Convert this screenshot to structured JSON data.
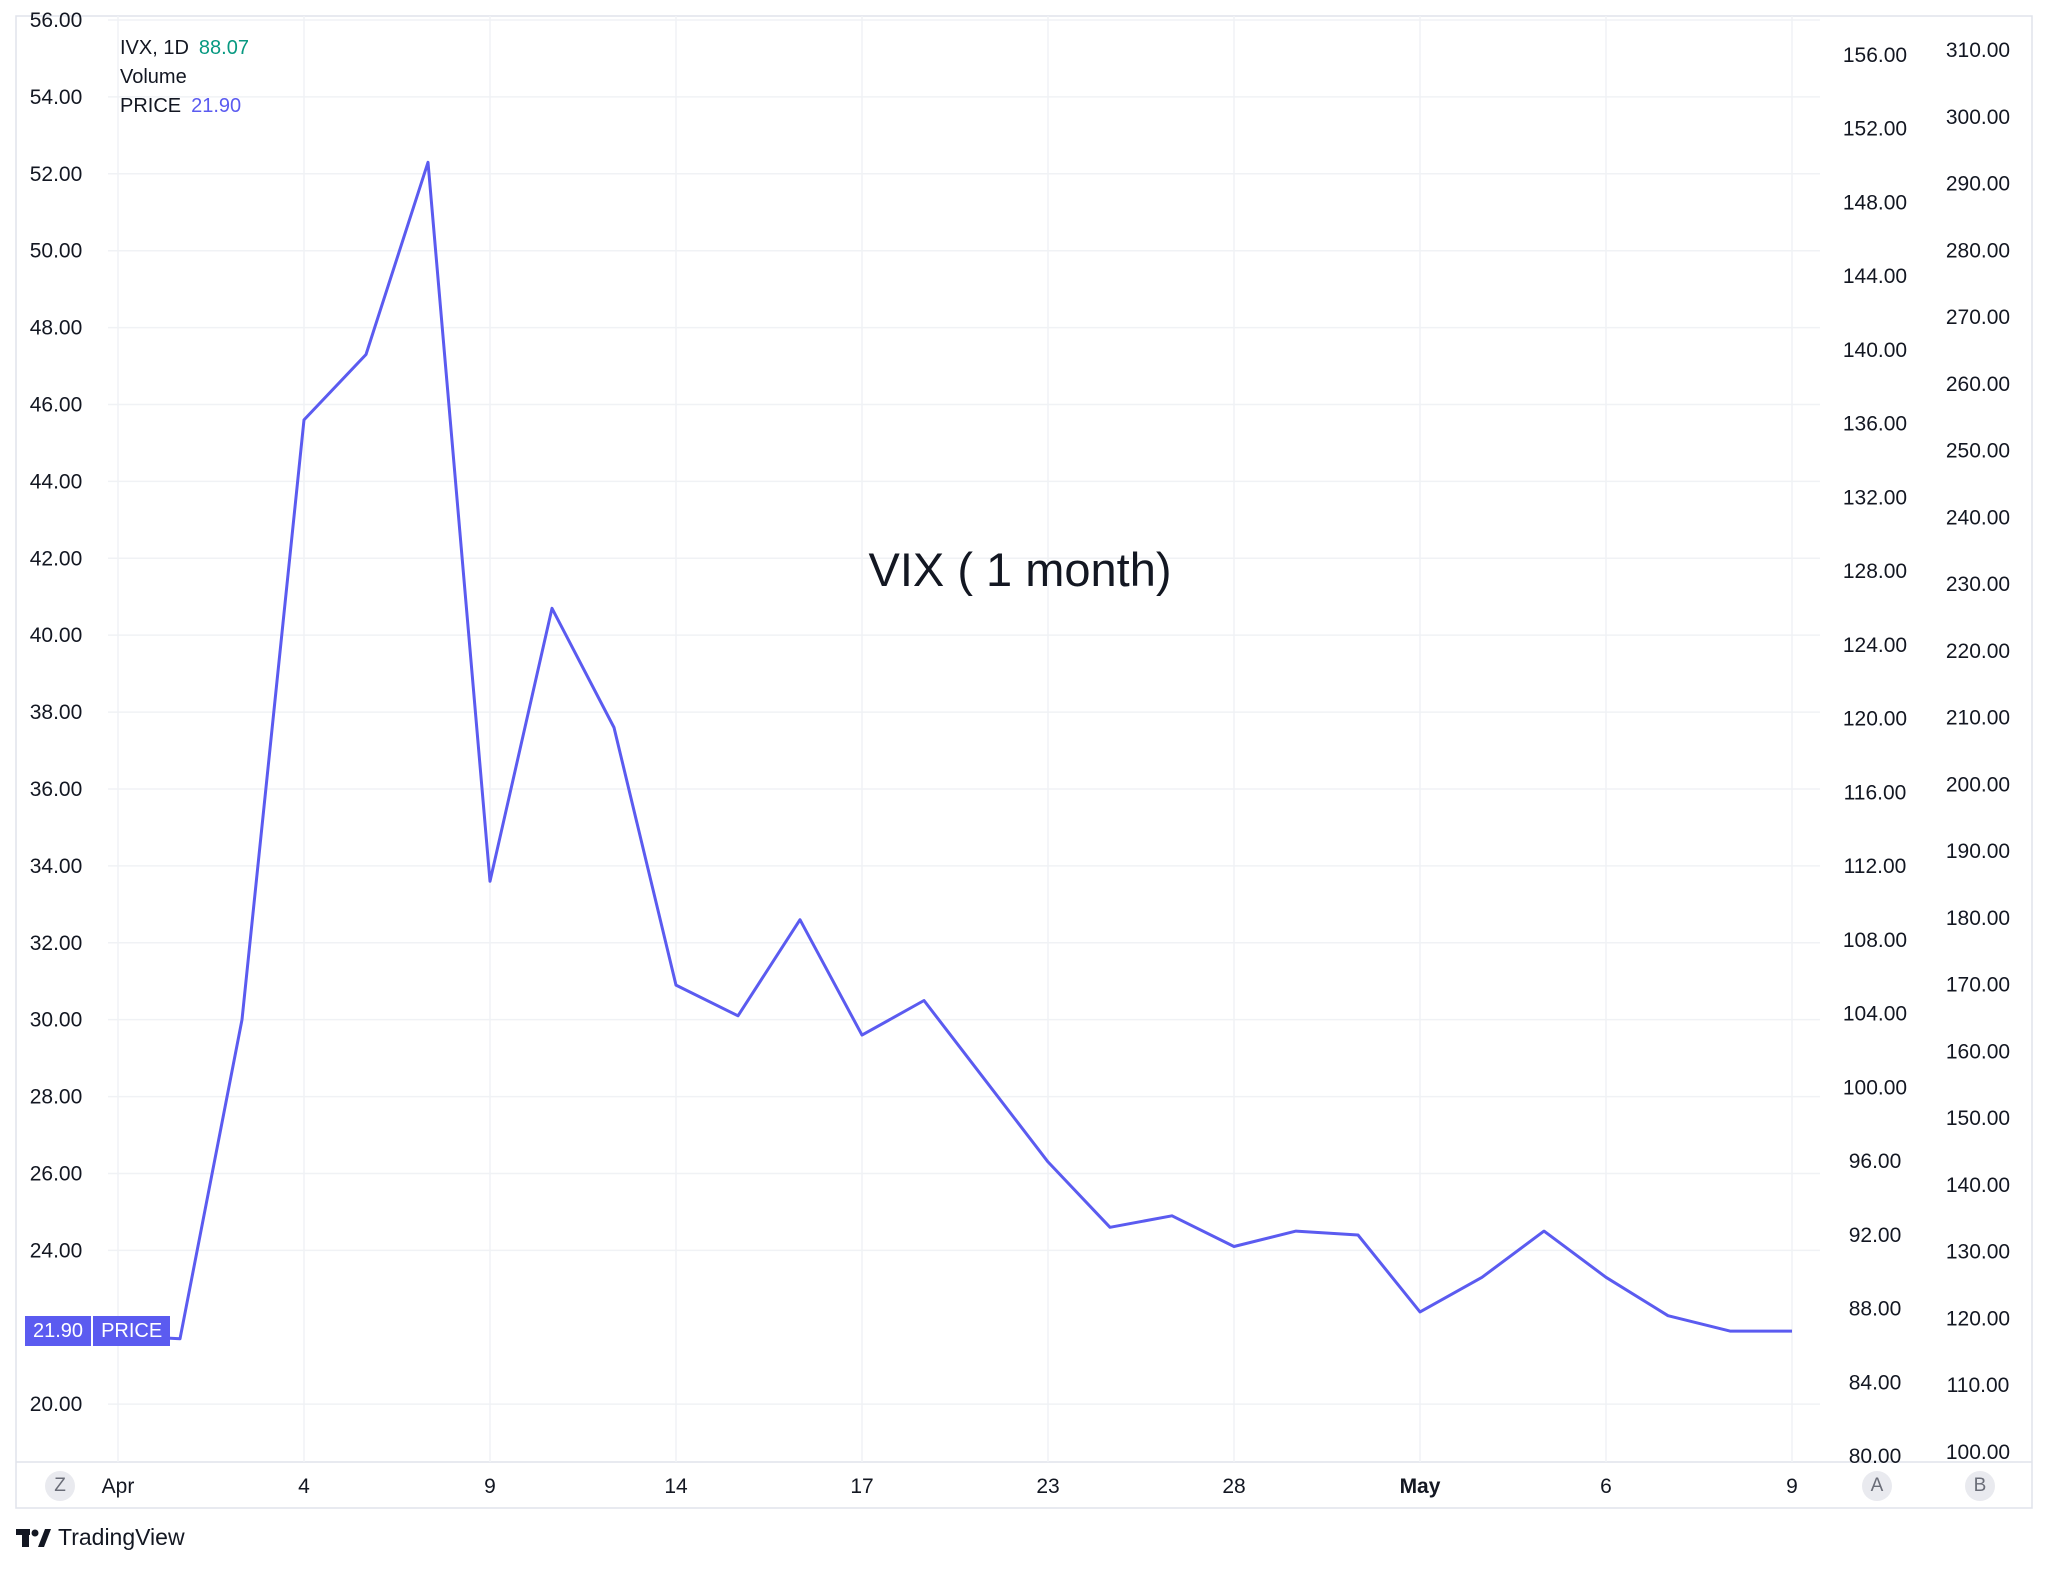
{
  "legend": {
    "symbol_interval": "IVX, 1D",
    "symbol_value": "88.07",
    "volume_label": "Volume",
    "price_label": "PRICE",
    "price_value": "21.90"
  },
  "annotation": "VIX ( 1 month)",
  "price_tag": {
    "value": "21.90",
    "label": "PRICE"
  },
  "buttons": {
    "z": "Z",
    "a": "A",
    "b": "B"
  },
  "brand": "TradingView",
  "colors": {
    "line": "#5b5bf0",
    "green": "#089981",
    "grid": "#f0f2f5"
  },
  "chart_data": {
    "type": "line",
    "series": [
      {
        "name": "PRICE",
        "x": [
          "Apr 1",
          "Apr 2",
          "Apr 3",
          "Apr 4",
          "Apr 7",
          "Apr 8",
          "Apr 9",
          "Apr 10",
          "Apr 11",
          "Apr 14",
          "Apr 15",
          "Apr 16",
          "Apr 17",
          "Apr 21",
          "Apr 22",
          "Apr 23",
          "Apr 24",
          "Apr 25",
          "Apr 28",
          "Apr 29",
          "Apr 30",
          "May 1",
          "May 2",
          "May 5",
          "May 6",
          "May 7",
          "May 8",
          "May 9"
        ],
        "values": [
          21.8,
          21.7,
          30.0,
          45.6,
          47.3,
          52.3,
          33.6,
          40.7,
          37.6,
          30.9,
          30.1,
          32.6,
          29.6,
          30.5,
          28.4,
          26.3,
          24.6,
          24.9,
          24.1,
          24.5,
          24.4,
          22.4,
          23.3,
          24.5,
          23.3,
          22.3,
          21.9,
          21.9
        ]
      }
    ],
    "x_tick_labels": [
      "Apr",
      "4",
      "9",
      "14",
      "17",
      "23",
      "28",
      "May",
      "6",
      "9"
    ],
    "y_left_ticks": [
      "20.00",
      "24.00",
      "26.00",
      "28.00",
      "30.00",
      "32.00",
      "34.00",
      "36.00",
      "38.00",
      "40.00",
      "42.00",
      "44.00",
      "46.00",
      "48.00",
      "50.00",
      "52.00",
      "54.00",
      "56.00"
    ],
    "y_right1_ticks": [
      "80.00",
      "84.00",
      "88.00",
      "92.00",
      "96.00",
      "100.00",
      "104.00",
      "108.00",
      "112.00",
      "116.00",
      "120.00",
      "124.00",
      "128.00",
      "132.00",
      "136.00",
      "140.00",
      "144.00",
      "148.00",
      "152.00",
      "156.00"
    ],
    "y_right2_ticks": [
      "100.00",
      "110.00",
      "120.00",
      "130.00",
      "140.00",
      "150.00",
      "160.00",
      "170.00",
      "180.00",
      "190.00",
      "200.00",
      "210.00",
      "220.00",
      "230.00",
      "240.00",
      "250.00",
      "260.00",
      "270.00",
      "280.00",
      "290.00",
      "300.00",
      "310.00"
    ],
    "ylim": [
      18.6,
      56.0
    ],
    "grid": true
  }
}
